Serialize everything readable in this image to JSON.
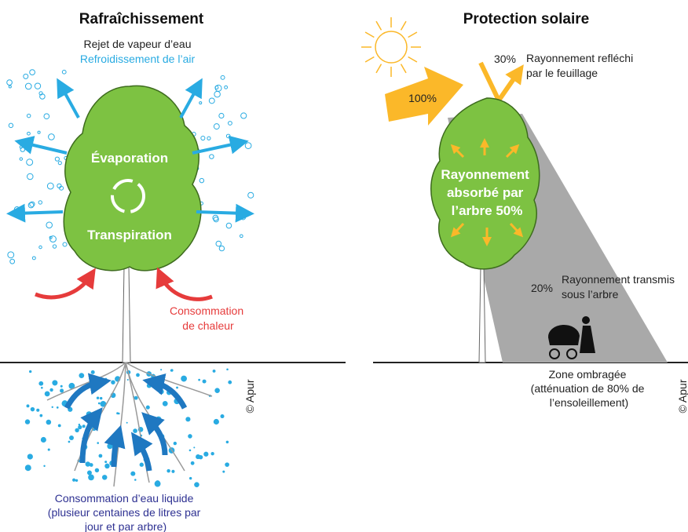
{
  "left": {
    "title": "Rafraîchissement",
    "vapour": "Rejet de vapeur d’eau",
    "air_cooling": "Refroidissement de l’air",
    "evaporation": "Évaporation",
    "transpiration": "Transpiration",
    "heat": [
      "Consommation",
      "de chaleur"
    ],
    "water": [
      "Consommation d’eau liquide",
      "(plusieur centaines de litres par",
      "jour et par arbre)"
    ],
    "credit": "© Apur"
  },
  "right": {
    "title": "Protection solaire",
    "incoming": "100%",
    "reflected_pct": "30%",
    "reflected": [
      "Rayonnement refléchi",
      "par le feuillage"
    ],
    "absorbed": [
      "Rayonnement",
      "absorbé par",
      "l’arbre 50%"
    ],
    "transmitted_pct": "20%",
    "transmitted": [
      "Rayonnement transmis",
      "sous l’arbre"
    ],
    "shade": [
      "Zone ombragée",
      "(atténuation de 80% de",
      "l’ensoleillement)"
    ],
    "credit": "© Apur"
  }
}
